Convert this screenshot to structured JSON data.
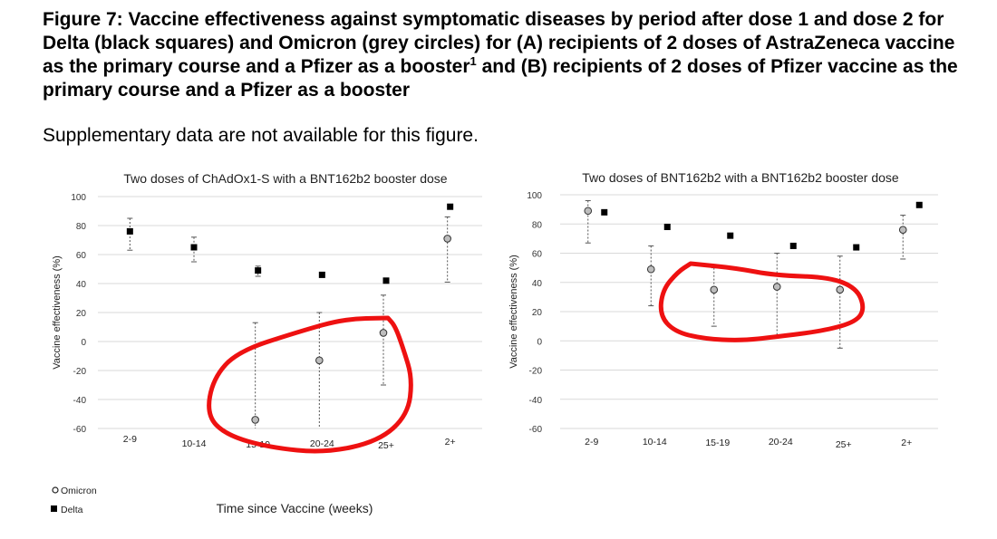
{
  "figure": {
    "title_main": "Figure 7: Vaccine effectiveness against symptomatic diseases by period after dose 1 and dose 2 for Delta (black squares) and Omicron (grey circles) for (A) recipients of 2 doses of AstraZeneca vaccine as the primary course and a Pfizer as a booster",
    "title_sup": "1",
    "title_tail": " and (B) recipients of 2 doses of Pfizer vaccine as the primary course and a Pfizer as a booster",
    "note": "Supplementary data are not available for this figure."
  },
  "colors": {
    "delta": "#000000",
    "omicron_fill": "#bdbdbd",
    "errorbar": "#555555",
    "grid": "#d9d9d9",
    "annotation": "#ee1111"
  },
  "legend": {
    "position": "bottom-left",
    "items": [
      {
        "label": "Omicron",
        "marker": "circle"
      },
      {
        "label": "Delta",
        "marker": "square"
      }
    ]
  },
  "xlabel": "Time since Vaccine (weeks)",
  "chart_data": [
    {
      "type": "scatter",
      "title": "Two doses of ChAdOx1-S with a BNT162b2 booster dose",
      "ylabel": "Vaccine effectiveness (%)",
      "xlabel": "Time since Vaccine (weeks)",
      "ylim": [
        -60,
        100
      ],
      "yticks": [
        100,
        80,
        60,
        40,
        20,
        0,
        -20,
        -40,
        -60
      ],
      "grid": true,
      "categories": [
        "2-9",
        "10-14",
        "15-19",
        "20-24",
        "25+",
        "2+"
      ],
      "series": [
        {
          "name": "Delta",
          "marker": "square",
          "values": [
            76,
            65,
            49,
            46,
            42,
            93
          ]
        },
        {
          "name": "Omicron",
          "marker": "circle",
          "values": [
            null,
            null,
            -54,
            -13,
            6,
            71
          ],
          "lower": [
            null,
            null,
            null,
            null,
            -30,
            41
          ],
          "upper": [
            null,
            null,
            13,
            20,
            32,
            86
          ]
        }
      ],
      "delta_errors": {
        "lower": [
          63,
          55,
          45,
          null,
          null,
          null
        ],
        "upper": [
          85,
          72,
          52,
          null,
          null,
          null
        ]
      },
      "annotation": "red-hand-drawn-circle-around-15-19-to-25+"
    },
    {
      "type": "scatter",
      "title": "Two doses of BNT162b2 with a BNT162b2 booster dose",
      "ylabel": "Vaccine effectiveness (%)",
      "ylim": [
        -60,
        100
      ],
      "yticks": [
        100,
        80,
        60,
        40,
        20,
        0,
        -20,
        -40,
        -60
      ],
      "grid": true,
      "categories": [
        "2-9",
        "10-14",
        "15-19",
        "20-24",
        "25+",
        "2+"
      ],
      "series": [
        {
          "name": "Delta",
          "marker": "square",
          "values": [
            88,
            78,
            72,
            65,
            64,
            93
          ]
        },
        {
          "name": "Omicron",
          "marker": "circle",
          "values": [
            89,
            49,
            35,
            37,
            35,
            76
          ],
          "lower": [
            67,
            24,
            10,
            3,
            -5,
            56
          ],
          "upper": [
            96,
            65,
            50,
            60,
            58,
            86
          ]
        }
      ],
      "annotation": "red-hand-drawn-circle-around-15-19-to-25+"
    }
  ]
}
